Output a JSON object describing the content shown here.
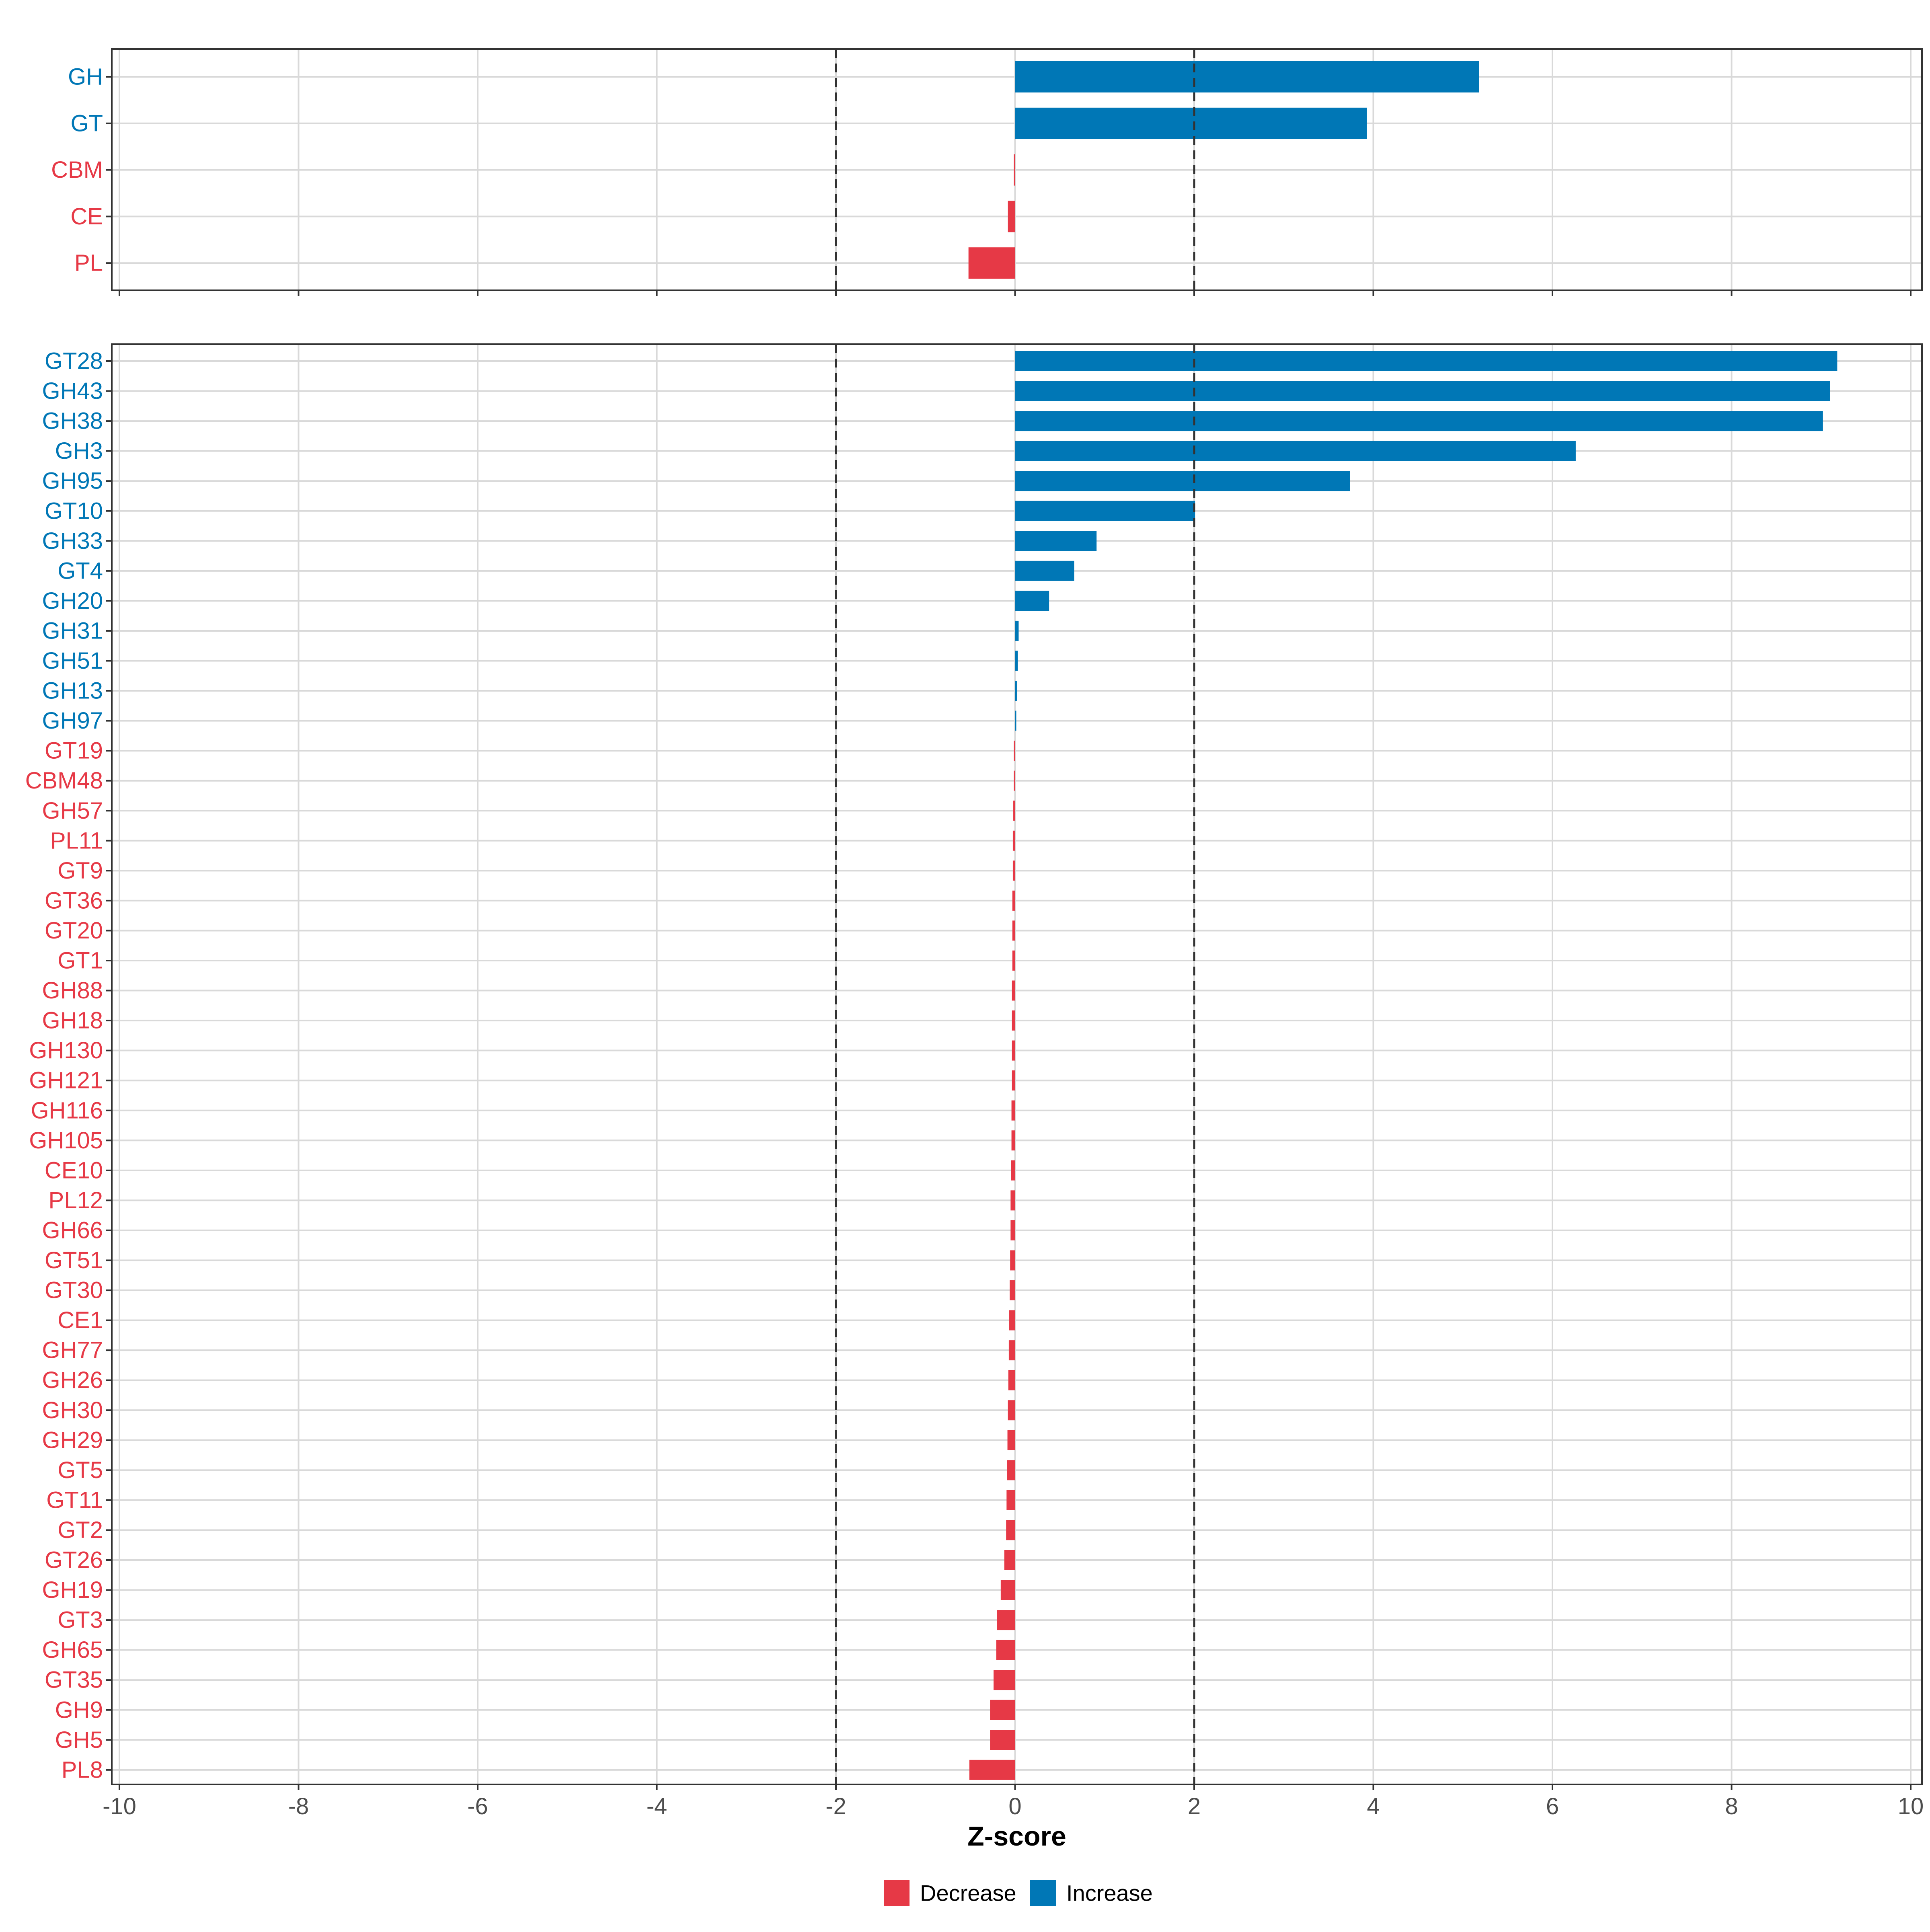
{
  "colors": {
    "decrease": "#E63946",
    "increase": "#0077B6",
    "grid": "#d9d9d9",
    "panel_border": "#333333",
    "ref_line": "#333333"
  },
  "chart_data": [
    {
      "type": "bar",
      "orientation": "horizontal",
      "panel": "top",
      "categories": [
        "GH",
        "GT",
        "CBM",
        "CE",
        "PL"
      ],
      "values": [
        5.18,
        3.93,
        -0.01,
        -0.08,
        -0.52
      ],
      "xlim": [
        -10,
        10
      ],
      "ref_lines": [
        -2,
        2
      ],
      "grid": true
    },
    {
      "type": "bar",
      "orientation": "horizontal",
      "panel": "bottom",
      "categories": [
        "GT28",
        "GH43",
        "GH38",
        "GH3",
        "GH95",
        "GT10",
        "GH33",
        "GT4",
        "GH20",
        "GH31",
        "GH51",
        "GH13",
        "GH97",
        "GT19",
        "CBM48",
        "GH57",
        "PL11",
        "GT9",
        "GT36",
        "GT20",
        "GT1",
        "GH88",
        "GH18",
        "GH130",
        "GH121",
        "GH116",
        "GH105",
        "CE10",
        "PL12",
        "GH66",
        "GT51",
        "GT30",
        "CE1",
        "GH77",
        "GH26",
        "GH30",
        "GH29",
        "GT5",
        "GT11",
        "GT2",
        "GT26",
        "GH19",
        "GT3",
        "GH65",
        "GT35",
        "GH9",
        "GH5",
        "PL8"
      ],
      "values": [
        9.18,
        9.1,
        9.02,
        6.26,
        3.74,
        2.01,
        0.91,
        0.66,
        0.38,
        0.04,
        0.03,
        0.02,
        0.01,
        -0.005,
        -0.01,
        -0.02,
        -0.025,
        -0.025,
        -0.03,
        -0.03,
        -0.03,
        -0.035,
        -0.035,
        -0.035,
        -0.035,
        -0.04,
        -0.04,
        -0.045,
        -0.05,
        -0.05,
        -0.055,
        -0.06,
        -0.065,
        -0.07,
        -0.075,
        -0.08,
        -0.085,
        -0.09,
        -0.095,
        -0.1,
        -0.12,
        -0.16,
        -0.2,
        -0.21,
        -0.24,
        -0.28,
        -0.28,
        -0.51
      ],
      "xlim": [
        -10,
        10
      ],
      "ref_lines": [
        -2,
        2
      ],
      "grid": true,
      "x_ticks": [
        "-10",
        "-8",
        "-6",
        "-4",
        "-2",
        "0",
        "2",
        "4",
        "6",
        "8",
        "10"
      ],
      "xlabel": "Z-score"
    }
  ],
  "legend": {
    "position": "bottom",
    "items": [
      {
        "label": "Decrease",
        "color": "#E63946"
      },
      {
        "label": "Increase",
        "color": "#0077B6"
      }
    ]
  }
}
